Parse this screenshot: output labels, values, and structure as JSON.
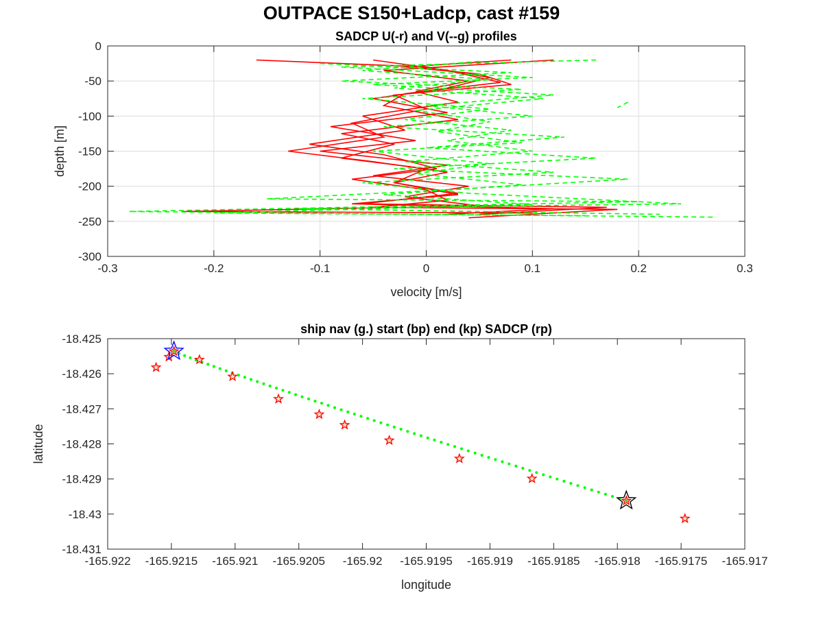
{
  "figure": {
    "title": "OUTPACE S150+Ladcp, cast #159"
  },
  "chart_data": [
    {
      "type": "line",
      "title": "SADCP U(-r) and V(--g) profiles",
      "xlabel": "velocity [m/s]",
      "ylabel": "depth [m]",
      "xlim": [
        -0.3,
        0.3
      ],
      "ylim": [
        -300,
        0
      ],
      "xticks": [
        "-0.3",
        "-0.2",
        "-0.1",
        "0",
        "0.1",
        "0.2",
        "0.3"
      ],
      "yticks": [
        "0",
        "-50",
        "-100",
        "-150",
        "-200",
        "-250",
        "-300"
      ],
      "grid": true,
      "series": [
        {
          "style": "solid",
          "color": "#ff0000",
          "values": [
            [
              0.08,
              -20
            ],
            [
              -0.02,
              -30
            ],
            [
              0.05,
              -40
            ],
            [
              0.08,
              -55
            ],
            [
              -0.03,
              -70
            ],
            [
              0.0,
              -90
            ],
            [
              -0.07,
              -110
            ],
            [
              -0.04,
              -130
            ],
            [
              -0.13,
              -150
            ],
            [
              -0.05,
              -165
            ],
            [
              0.02,
              -180
            ],
            [
              -0.03,
              -195
            ],
            [
              0.03,
              -210
            ],
            [
              -0.06,
              -225
            ],
            [
              0.17,
              -230
            ],
            [
              0.05,
              -240
            ]
          ]
        },
        {
          "style": "solid",
          "color": "#ff0000",
          "values": [
            [
              -0.16,
              -20
            ],
            [
              0.0,
              -30
            ],
            [
              0.06,
              -45
            ],
            [
              0.02,
              -60
            ],
            [
              -0.05,
              -75
            ],
            [
              0.02,
              -95
            ],
            [
              -0.09,
              -115
            ],
            [
              -0.01,
              -135
            ],
            [
              -0.1,
              -150
            ],
            [
              0.02,
              -170
            ],
            [
              -0.05,
              -185
            ],
            [
              0.04,
              -200
            ],
            [
              -0.02,
              -215
            ],
            [
              0.05,
              -228
            ],
            [
              -0.23,
              -236
            ],
            [
              0.1,
              -238
            ]
          ]
        },
        {
          "style": "solid",
          "color": "#ff0000",
          "values": [
            [
              0.12,
              -20
            ],
            [
              -0.04,
              -35
            ],
            [
              0.04,
              -50
            ],
            [
              -0.01,
              -65
            ],
            [
              0.03,
              -80
            ],
            [
              -0.06,
              -100
            ],
            [
              -0.02,
              -120
            ],
            [
              -0.11,
              -140
            ],
            [
              -0.04,
              -155
            ],
            [
              0.01,
              -175
            ],
            [
              -0.07,
              -190
            ],
            [
              0.0,
              -205
            ],
            [
              0.02,
              -220
            ],
            [
              -0.05,
              -230
            ],
            [
              0.18,
              -233
            ],
            [
              0.04,
              -245
            ]
          ]
        },
        {
          "style": "solid",
          "color": "#ff0000",
          "values": [
            [
              -0.05,
              -20
            ],
            [
              0.02,
              -35
            ],
            [
              0.07,
              -52
            ],
            [
              -0.02,
              -68
            ],
            [
              -0.04,
              -85
            ],
            [
              0.03,
              -105
            ],
            [
              -0.08,
              -125
            ],
            [
              -0.03,
              -140
            ],
            [
              -0.08,
              -160
            ],
            [
              0.0,
              -175
            ],
            [
              -0.03,
              -195
            ],
            [
              0.03,
              -212
            ],
            [
              -0.07,
              -225
            ],
            [
              0.12,
              -232
            ],
            [
              0.02,
              -240
            ]
          ]
        },
        {
          "style": "dashed",
          "color": "#00ff00",
          "values": [
            [
              0.16,
              -20
            ],
            [
              -0.08,
              -30
            ],
            [
              0.1,
              -45
            ],
            [
              -0.05,
              -55
            ],
            [
              0.12,
              -70
            ],
            [
              0.0,
              -85
            ],
            [
              0.1,
              -100
            ],
            [
              -0.04,
              -115
            ],
            [
              0.13,
              -130
            ],
            [
              0.0,
              -145
            ],
            [
              0.16,
              -160
            ],
            [
              -0.03,
              -175
            ],
            [
              0.19,
              -190
            ],
            [
              0.02,
              -205
            ],
            [
              -0.15,
              -218
            ],
            [
              0.2,
              -222
            ],
            [
              -0.28,
              -236
            ],
            [
              0.27,
              -244
            ]
          ]
        },
        {
          "style": "dashed",
          "color": "#00ff00",
          "values": [
            [
              -0.1,
              -25
            ],
            [
              0.08,
              -38
            ],
            [
              -0.08,
              -50
            ],
            [
              0.09,
              -62
            ],
            [
              -0.06,
              -75
            ],
            [
              0.06,
              -90
            ],
            [
              -0.02,
              -105
            ],
            [
              0.08,
              -120
            ],
            [
              0.02,
              -135
            ],
            [
              0.1,
              -150
            ],
            [
              -0.02,
              -165
            ],
            [
              0.12,
              -180
            ],
            [
              -0.06,
              -195
            ],
            [
              0.04,
              -210
            ],
            [
              0.24,
              -225
            ],
            [
              -0.12,
              -232
            ],
            [
              0.22,
              -240
            ]
          ]
        },
        {
          "style": "dashed",
          "color": "#00ff00",
          "values": [
            [
              0.05,
              -22
            ],
            [
              -0.06,
              -35
            ],
            [
              0.06,
              -48
            ],
            [
              -0.03,
              -60
            ],
            [
              0.11,
              -75
            ],
            [
              -0.01,
              -92
            ],
            [
              0.06,
              -108
            ],
            [
              0.01,
              -122
            ],
            [
              0.09,
              -138
            ],
            [
              -0.05,
              -150
            ],
            [
              0.06,
              -168
            ],
            [
              -0.01,
              -182
            ],
            [
              0.09,
              -198
            ],
            [
              -0.04,
              -212
            ],
            [
              0.1,
              -226
            ],
            [
              -0.2,
              -238
            ],
            [
              0.15,
              -242
            ]
          ]
        },
        {
          "style": "dashed",
          "color": "#00ff00",
          "values": [
            [
              0.19,
              -80
            ],
            [
              0.18,
              -88
            ]
          ]
        }
      ]
    },
    {
      "type": "scatter",
      "title": "ship nav (g.) start (bp) end (kp) SADCP (rp)",
      "xlabel": "longitude",
      "ylabel": "latitude",
      "xlim": [
        -165.922,
        -165.917
      ],
      "ylim": [
        -18.431,
        -18.425
      ],
      "xticks": [
        "-165.922",
        "-165.9215",
        "-165.921",
        "-165.9205",
        "-165.92",
        "-165.9195",
        "-165.919",
        "-165.9185",
        "-165.918",
        "-165.9175",
        "-165.917"
      ],
      "yticks": [
        "-18.425",
        "-18.426",
        "-18.427",
        "-18.428",
        "-18.429",
        "-18.43",
        "-18.431"
      ],
      "grid": false,
      "nav_color": "#00ff00",
      "nav_x_range": [
        -165.92148,
        -165.91793
      ],
      "nav_y_range": [
        -18.42536,
        -18.42962
      ],
      "nav_count": 70,
      "start": {
        "x": -165.92148,
        "y": -18.42536,
        "color": "#0000ff"
      },
      "end": {
        "x": -165.91793,
        "y": -18.42962,
        "color": "#000000"
      },
      "sadcp_color": "#ff0000",
      "sadcp_points": [
        {
          "x": -165.92162,
          "y": -18.42582
        },
        {
          "x": -165.92152,
          "y": -18.42552
        },
        {
          "x": -165.92148,
          "y": -18.42536
        },
        {
          "x": -165.92128,
          "y": -18.4256
        },
        {
          "x": -165.92102,
          "y": -18.42608
        },
        {
          "x": -165.92066,
          "y": -18.42672
        },
        {
          "x": -165.92034,
          "y": -18.42716
        },
        {
          "x": -165.92014,
          "y": -18.42746
        },
        {
          "x": -165.91979,
          "y": -18.4279
        },
        {
          "x": -165.91924,
          "y": -18.42842
        },
        {
          "x": -165.91867,
          "y": -18.42899
        },
        {
          "x": -165.91793,
          "y": -18.42962
        },
        {
          "x": -165.91747,
          "y": -18.43013
        }
      ]
    }
  ]
}
